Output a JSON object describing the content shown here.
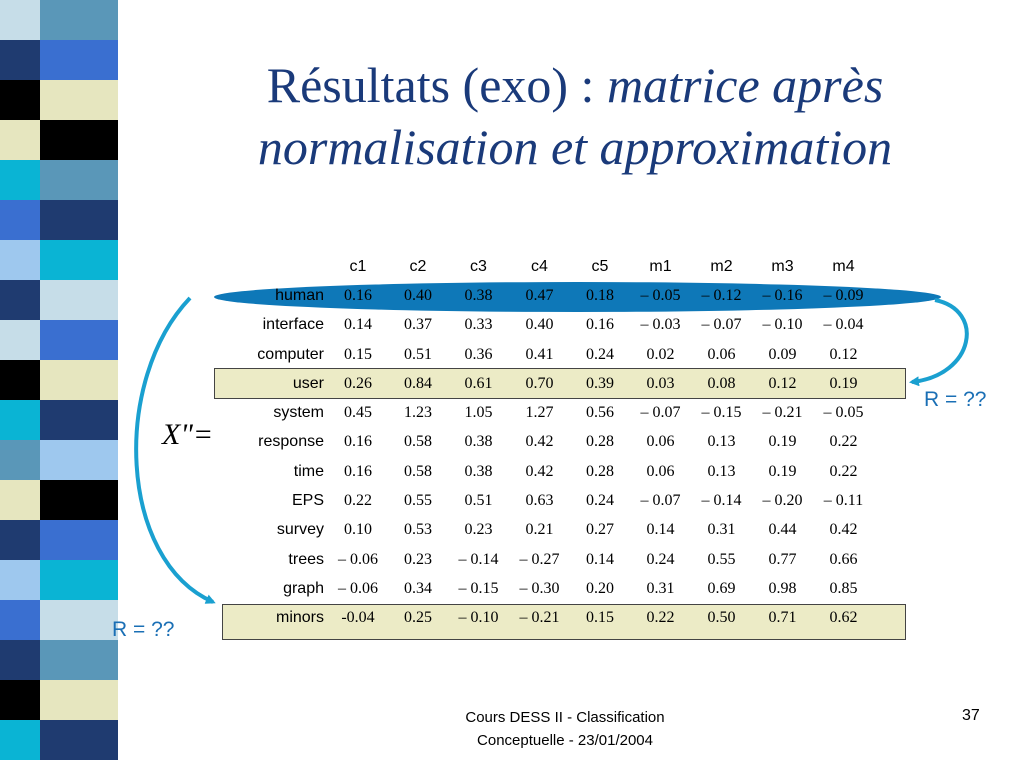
{
  "title": {
    "plain": "Résultats (exo) : ",
    "italic_line1": "matrice après",
    "italic_line2": "normalisation et approximation"
  },
  "matrix": {
    "label": "X\"=",
    "columns": [
      "c1",
      "c2",
      "c3",
      "c4",
      "c5",
      "m1",
      "m2",
      "m3",
      "m4"
    ],
    "rows": [
      {
        "term": "human",
        "values": [
          "0.16",
          "0.40",
          "0.38",
          "0.47",
          "0.18",
          "– 0.05",
          "– 0.12",
          "– 0.16",
          "– 0.09"
        ]
      },
      {
        "term": "interface",
        "values": [
          "0.14",
          "0.37",
          "0.33",
          "0.40",
          "0.16",
          "– 0.03",
          "– 0.07",
          "– 0.10",
          "– 0.04"
        ]
      },
      {
        "term": "computer",
        "values": [
          "0.15",
          "0.51",
          "0.36",
          "0.41",
          "0.24",
          "0.02",
          "0.06",
          "0.09",
          "0.12"
        ]
      },
      {
        "term": "user",
        "values": [
          "0.26",
          "0.84",
          "0.61",
          "0.70",
          "0.39",
          "0.03",
          "0.08",
          "0.12",
          "0.19"
        ]
      },
      {
        "term": "system",
        "values": [
          "0.45",
          "1.23",
          "1.05",
          "1.27",
          "0.56",
          "– 0.07",
          "– 0.15",
          "– 0.21",
          "– 0.05"
        ]
      },
      {
        "term": "response",
        "values": [
          "0.16",
          "0.58",
          "0.38",
          "0.42",
          "0.28",
          "0.06",
          "0.13",
          "0.19",
          "0.22"
        ]
      },
      {
        "term": "time",
        "values": [
          "0.16",
          "0.58",
          "0.38",
          "0.42",
          "0.28",
          "0.06",
          "0.13",
          "0.19",
          "0.22"
        ]
      },
      {
        "term": "EPS",
        "values": [
          "0.22",
          "0.55",
          "0.51",
          "0.63",
          "0.24",
          "– 0.07",
          "– 0.14",
          "– 0.20",
          "– 0.11"
        ]
      },
      {
        "term": "survey",
        "values": [
          "0.10",
          "0.53",
          "0.23",
          "0.21",
          "0.27",
          "0.14",
          "0.31",
          "0.44",
          "0.42"
        ]
      },
      {
        "term": "trees",
        "values": [
          "– 0.06",
          "0.23",
          "– 0.14",
          "– 0.27",
          "0.14",
          "0.24",
          "0.55",
          "0.77",
          "0.66"
        ]
      },
      {
        "term": "graph",
        "values": [
          "– 0.06",
          "0.34",
          "– 0.15",
          "– 0.30",
          "0.20",
          "0.31",
          "0.69",
          "0.98",
          "0.85"
        ]
      },
      {
        "term": "minors",
        "values": [
          "-0.04",
          "0.25",
          "– 0.10",
          "– 0.21",
          "0.15",
          "0.22",
          "0.50",
          "0.71",
          "0.62"
        ]
      }
    ],
    "highlighted_rows": [
      "human",
      "user",
      "minors"
    ]
  },
  "annotations": {
    "r_right": "R = ??",
    "r_left": "R = ??"
  },
  "footer": {
    "line1": "Cours DESS II - Classification",
    "line2": "Conceptuelle - 23/01/2004",
    "page": "37"
  },
  "colors": {
    "title": "#1a3a7a",
    "oval": "#0e78b8",
    "row_highlight": "#ecebc6",
    "arrow": "#1aa0d0",
    "r_label": "#1a6fb5",
    "stripe_palette": [
      "#c6dde8",
      "#5a97b8",
      "#1f3b70",
      "#3a6fd0",
      "#000000",
      "#e6e6bf",
      "#0ab4d4",
      "#9ec8ee"
    ]
  }
}
